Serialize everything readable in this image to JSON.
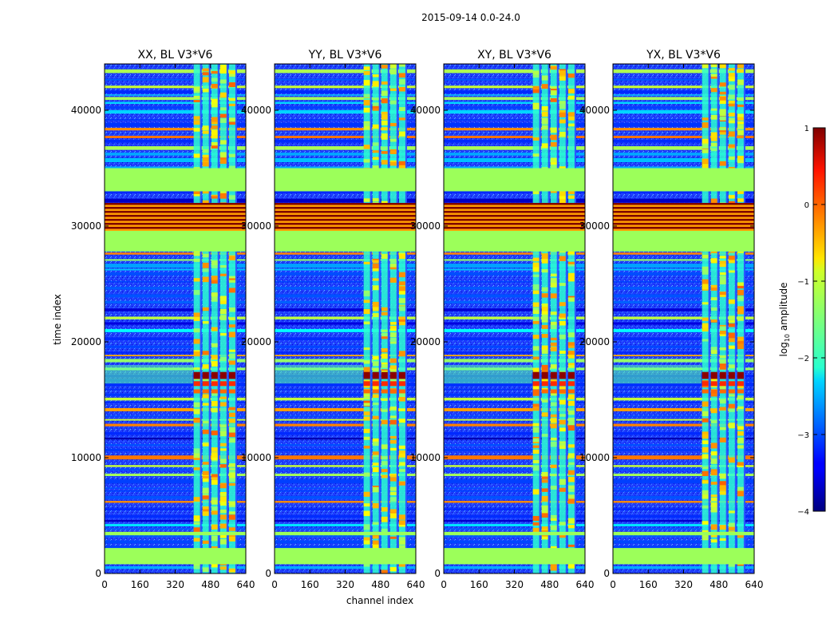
{
  "figure": {
    "suptitle": "2015-09-14 0.0-24.0",
    "xlabel": "channel index",
    "ylabel": "time index",
    "colorbar_label": "log10 amplitude",
    "colorbar_label_base": "log",
    "colorbar_label_sub": "10",
    "colorbar_label_rest": " amplitude"
  },
  "chart_data": {
    "type": "heatmap",
    "colormap": "jet",
    "xlim": [
      0,
      640
    ],
    "ylim": [
      0,
      44000
    ],
    "xticks": [
      0,
      160,
      320,
      480,
      640
    ],
    "yticks": [
      0,
      10000,
      20000,
      30000,
      40000
    ],
    "clim": [
      -4,
      1
    ],
    "cticks": [
      -4,
      -3,
      -2,
      -1,
      0,
      1
    ],
    "panels": [
      {
        "title": "XX, BL V3*V6"
      },
      {
        "title": "YY, BL V3*V6"
      },
      {
        "title": "XY, BL V3*V6"
      },
      {
        "title": "YX, BL V3*V6"
      }
    ],
    "active_channel_band": [
      400,
      600
    ],
    "flagged_time_bands": [
      [
        27800,
        29800
      ],
      [
        33000,
        35000
      ],
      [
        29800,
        32000
      ]
    ],
    "strong_time_band": [
      16800,
      17400
    ]
  }
}
